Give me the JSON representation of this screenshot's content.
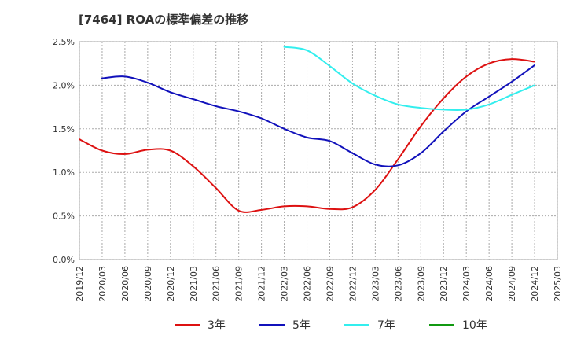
{
  "chart_data": {
    "type": "line",
    "title": "[7464]  ROAの標準偏差の推移",
    "xlabel": "",
    "ylabel": "",
    "ylim": [
      0,
      2.5
    ],
    "y_ticks": [
      "0.0%",
      "0.5%",
      "1.0%",
      "1.5%",
      "2.0%",
      "2.5%"
    ],
    "y_tick_values": [
      0,
      0.5,
      1.0,
      1.5,
      2.0,
      2.5
    ],
    "categories": [
      "2019/12",
      "2020/03",
      "2020/06",
      "2020/09",
      "2020/12",
      "2021/03",
      "2021/06",
      "2021/09",
      "2021/12",
      "2022/03",
      "2022/06",
      "2022/09",
      "2022/12",
      "2023/03",
      "2023/06",
      "2023/09",
      "2023/12",
      "2024/03",
      "2024/06",
      "2024/09",
      "2024/12",
      "2025/03"
    ],
    "grid": true,
    "legend_position": "bottom",
    "series": [
      {
        "name": "3年",
        "color": "#dd1111",
        "values": [
          1.38,
          1.25,
          1.21,
          1.26,
          1.25,
          1.07,
          0.82,
          0.56,
          0.57,
          0.61,
          0.61,
          0.58,
          0.6,
          0.8,
          1.15,
          1.53,
          1.85,
          2.1,
          2.25,
          2.3,
          2.27,
          null
        ]
      },
      {
        "name": "5年",
        "color": "#1111bb",
        "values": [
          null,
          2.08,
          2.1,
          2.03,
          1.92,
          1.84,
          1.76,
          1.7,
          1.62,
          1.5,
          1.4,
          1.36,
          1.22,
          1.09,
          1.08,
          1.22,
          1.47,
          1.7,
          1.87,
          2.04,
          2.23,
          null
        ]
      },
      {
        "name": "7年",
        "color": "#33eeee",
        "values": [
          null,
          null,
          null,
          null,
          null,
          null,
          null,
          null,
          null,
          2.44,
          2.4,
          2.22,
          2.02,
          1.88,
          1.78,
          1.74,
          1.72,
          1.72,
          1.78,
          1.89,
          2.0,
          null
        ]
      },
      {
        "name": "10年",
        "color": "#119911",
        "values": [
          null,
          null,
          null,
          null,
          null,
          null,
          null,
          null,
          null,
          null,
          null,
          null,
          null,
          null,
          null,
          null,
          null,
          null,
          null,
          null,
          null,
          null
        ]
      }
    ]
  }
}
